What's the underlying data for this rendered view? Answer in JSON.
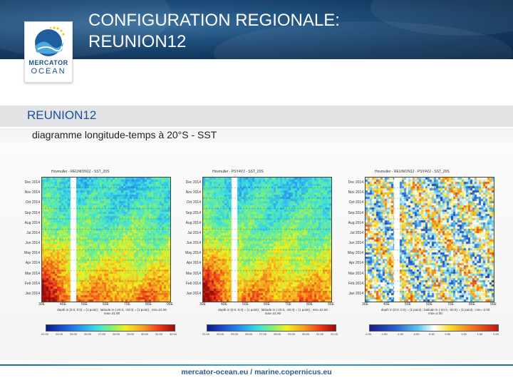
{
  "header": {
    "title_line1": "CONFIGURATION REGIONALE:",
    "title_line2": "REUNION12",
    "logo_line1": "MERCATOR",
    "logo_line2": "OCEAN"
  },
  "section_title": "REUNION12",
  "subtitle": "diagramme longitude-temps à 20°S - SST",
  "panels": [
    {
      "title": "Hovmuller - REUNION12 - SST_20S",
      "ylabels": [
        "Dec 2014",
        "Nov 2014",
        "Oct 2014",
        "Sep 2014",
        "Aug 2014",
        "Jul 2014",
        "Jun 2014",
        "May 2014",
        "Apr 2014",
        "Mar 2014",
        "Feb 2014",
        "Jan 2014"
      ],
      "xlabels": [
        "30E",
        "40E",
        "50E",
        "60E",
        "70E",
        "80E",
        "90E"
      ],
      "caption": "depth in (0.0, 0.0) = (1 point) ; latitude in (-20.0, -20.0) = (1 point) ; min=22.00 max=31.80",
      "colorbar": [
        "22.00",
        "24.00",
        "25.00",
        "26.00",
        "27.00",
        "28.00",
        "29.00",
        "30.00",
        "31.00",
        "32.00"
      ],
      "scale": "seq"
    },
    {
      "title": "Hovmuller - PSY4V2 - SST_20S",
      "ylabels": [
        "Dec 2014",
        "Nov 2014",
        "Oct 2014",
        "Sep 2014",
        "Aug 2014",
        "Jul 2014",
        "Jun 2014",
        "May 2014",
        "Apr 2014",
        "Mar 2014",
        "Feb 2014",
        "Jan 2014"
      ],
      "xlabels": [
        "30E",
        "40E",
        "50E",
        "60E",
        "70E",
        "80E",
        "90E"
      ],
      "caption": "depth in (0.0, 0.0) = (1 point) ; latitude in (-20.0, -20.0) = (1 point) ; min=22.00 max=31.80",
      "colorbar": [
        "22.00",
        "24.00",
        "25.00",
        "26.00",
        "27.00",
        "28.00",
        "29.00",
        "30.00",
        "31.00",
        "32.00"
      ],
      "scale": "seq"
    },
    {
      "title": "Hovmuller - REUNION12 - PSY4V2 - SST_20S",
      "ylabels": [
        "Dec 2014",
        "Nov 2014",
        "Oct 2014",
        "Sep 2014",
        "Aug 2014",
        "Jul 2014",
        "Jun 2014",
        "May 2014",
        "Apr 2014",
        "Mar 2014",
        "Feb 2014",
        "Jan 2014"
      ],
      "xlabels": [
        "30E",
        "40E",
        "50E",
        "60E",
        "70E",
        "80E",
        "90E"
      ],
      "caption": "depth in (0.0, 0.0) = (1 point) ; latitude in (-20.0, -20.0) = (1 point) ; min=-2.00 max=2.00",
      "colorbar": [
        "-2.00",
        "-1.50",
        "-1.00",
        "-0.50",
        "0.00",
        "0.50",
        "1.00",
        "1.50",
        "2.00"
      ],
      "scale": "div"
    }
  ],
  "footer": "mercator-ocean.eu / marine.copernicus.eu"
}
